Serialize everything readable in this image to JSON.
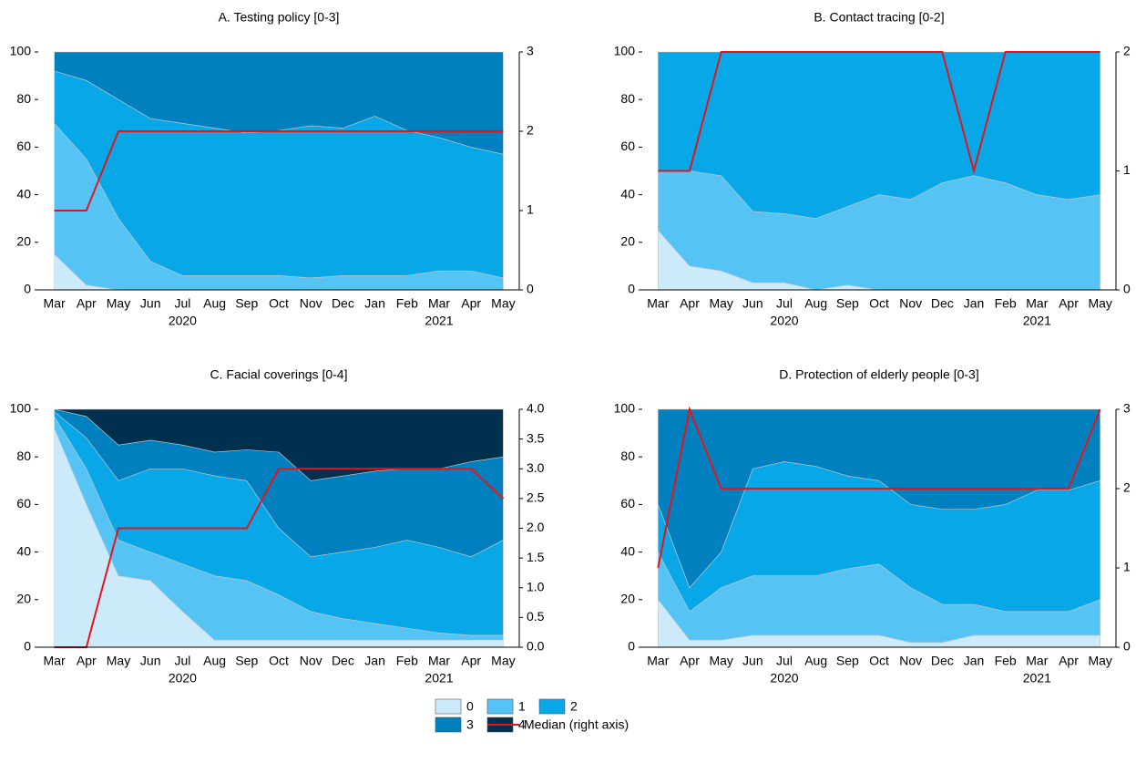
{
  "chart_data": [
    {
      "type": "area",
      "title": "A. Testing policy [0-3]",
      "categories": [
        "Mar",
        "Apr",
        "May",
        "Jun",
        "Jul",
        "Aug",
        "Sep",
        "Oct",
        "Nov",
        "Dec",
        "Jan",
        "Feb",
        "Mar",
        "Apr",
        "May"
      ],
      "years": [
        "2020",
        "2021"
      ],
      "series": [
        {
          "name": "0",
          "color": "#cdeafa",
          "values": [
            15,
            2,
            0,
            0,
            0,
            0,
            0,
            0,
            0,
            0,
            0,
            0,
            0,
            0,
            0
          ]
        },
        {
          "name": "1",
          "color": "#55c4f5",
          "values": [
            55,
            53,
            30,
            12,
            6,
            6,
            6,
            6,
            5,
            6,
            6,
            6,
            8,
            8,
            5
          ]
        },
        {
          "name": "2",
          "color": "#08a8e8",
          "values": [
            22,
            33,
            50,
            60,
            64,
            62,
            60,
            61,
            64,
            62,
            67,
            61,
            56,
            52,
            52
          ]
        },
        {
          "name": "3",
          "color": "#0080bf",
          "values": [
            8,
            12,
            20,
            28,
            30,
            32,
            34,
            33,
            31,
            32,
            27,
            33,
            36,
            40,
            43
          ]
        },
        {
          "name": "Median (right axis)",
          "color": "#e3151b",
          "axis": "y2",
          "values": [
            1,
            1,
            2,
            2,
            2,
            2,
            2,
            2,
            2,
            2,
            2,
            2,
            2,
            2,
            2
          ]
        }
      ],
      "ylim": [
        0,
        100
      ],
      "yticks": [
        0,
        20,
        40,
        60,
        80,
        100
      ],
      "y2lim": [
        0,
        3
      ],
      "y2ticks": [
        0,
        1,
        2,
        3
      ]
    },
    {
      "type": "area",
      "title": "B. Contact tracing [0-2]",
      "categories": [
        "Mar",
        "Apr",
        "May",
        "Jun",
        "Jul",
        "Aug",
        "Sep",
        "Oct",
        "Nov",
        "Dec",
        "Jan",
        "Feb",
        "Mar",
        "Apr",
        "May"
      ],
      "years": [
        "2020",
        "2021"
      ],
      "series": [
        {
          "name": "0",
          "color": "#cdeafa",
          "values": [
            25,
            10,
            8,
            3,
            3,
            0,
            2,
            0,
            0,
            0,
            0,
            0,
            0,
            0,
            0
          ]
        },
        {
          "name": "1",
          "color": "#55c4f5",
          "values": [
            25,
            40,
            40,
            30,
            29,
            30,
            33,
            40,
            38,
            45,
            48,
            45,
            40,
            38,
            40
          ]
        },
        {
          "name": "2",
          "color": "#08a8e8",
          "values": [
            50,
            50,
            52,
            67,
            68,
            70,
            65,
            60,
            62,
            55,
            52,
            55,
            60,
            62,
            60
          ]
        },
        {
          "name": "Median (right axis)",
          "color": "#e3151b",
          "axis": "y2",
          "values": [
            1,
            1,
            2,
            2,
            2,
            2,
            2,
            2,
            2,
            2,
            1,
            2,
            2,
            2,
            2
          ]
        }
      ],
      "ylim": [
        0,
        100
      ],
      "yticks": [
        0,
        20,
        40,
        60,
        80,
        100
      ],
      "y2lim": [
        0,
        2
      ],
      "y2ticks": [
        0,
        1,
        2
      ]
    },
    {
      "type": "area",
      "title": "C. Facial coverings [0-4]",
      "categories": [
        "Mar",
        "Apr",
        "May",
        "Jun",
        "Jul",
        "Aug",
        "Sep",
        "Oct",
        "Nov",
        "Dec",
        "Jan",
        "Feb",
        "Mar",
        "Apr",
        "May"
      ],
      "years": [
        "2020",
        "2021"
      ],
      "series": [
        {
          "name": "0",
          "color": "#cdeafa",
          "values": [
            92,
            60,
            30,
            28,
            15,
            3,
            3,
            3,
            3,
            3,
            3,
            3,
            3,
            3,
            3
          ]
        },
        {
          "name": "1",
          "color": "#55c4f5",
          "values": [
            5,
            15,
            15,
            12,
            20,
            27,
            25,
            19,
            12,
            9,
            7,
            5,
            3,
            2,
            2
          ]
        },
        {
          "name": "2",
          "color": "#08a8e8",
          "values": [
            2,
            13,
            25,
            35,
            40,
            42,
            42,
            28,
            23,
            28,
            32,
            37,
            36,
            33,
            40
          ]
        },
        {
          "name": "3",
          "color": "#0080bf",
          "values": [
            1,
            9,
            15,
            12,
            10,
            10,
            13,
            32,
            32,
            32,
            32,
            30,
            33,
            40,
            35
          ]
        },
        {
          "name": "4",
          "color": "#00304d",
          "values": [
            0,
            3,
            15,
            13,
            15,
            18,
            17,
            18,
            30,
            28,
            26,
            25,
            25,
            22,
            20
          ]
        },
        {
          "name": "Median (right axis)",
          "color": "#e3151b",
          "axis": "y2",
          "values": [
            0,
            0,
            2,
            2,
            2,
            2,
            2,
            3,
            3,
            3,
            3,
            3,
            3,
            3,
            2.5
          ]
        }
      ],
      "ylim": [
        0,
        100
      ],
      "yticks": [
        0,
        20,
        40,
        60,
        80,
        100
      ],
      "y2lim": [
        0,
        4
      ],
      "y2ticks": [
        {
          "value": 0,
          "label": "0.0"
        },
        {
          "value": 0.5,
          "label": "0.5"
        },
        {
          "value": 1,
          "label": "1.0"
        },
        {
          "value": 1.5,
          "label": "1.5"
        },
        {
          "value": 2,
          "label": "2.0"
        },
        {
          "value": 2.5,
          "label": "2.5"
        },
        {
          "value": 3,
          "label": "3.0"
        },
        {
          "value": 3.5,
          "label": "3.5"
        },
        {
          "value": 4,
          "label": "4.0"
        }
      ]
    },
    {
      "type": "area",
      "title": "D. Protection of elderly people [0-3]",
      "categories": [
        "Mar",
        "Apr",
        "May",
        "Jun",
        "Jul",
        "Aug",
        "Sep",
        "Oct",
        "Nov",
        "Dec",
        "Jan",
        "Feb",
        "Mar",
        "Apr",
        "May"
      ],
      "years": [
        "2020",
        "2021"
      ],
      "series": [
        {
          "name": "0",
          "color": "#cdeafa",
          "values": [
            20,
            3,
            3,
            5,
            5,
            5,
            5,
            5,
            2,
            2,
            5,
            5,
            5,
            5,
            5
          ]
        },
        {
          "name": "1",
          "color": "#55c4f5",
          "values": [
            20,
            12,
            22,
            25,
            25,
            25,
            28,
            30,
            23,
            16,
            13,
            10,
            10,
            10,
            15
          ]
        },
        {
          "name": "2",
          "color": "#08a8e8",
          "values": [
            20,
            10,
            15,
            45,
            48,
            46,
            39,
            35,
            35,
            40,
            40,
            45,
            51,
            51,
            50
          ]
        },
        {
          "name": "3",
          "color": "#0080bf",
          "values": [
            40,
            75,
            60,
            25,
            22,
            24,
            28,
            30,
            40,
            42,
            42,
            40,
            34,
            34,
            30
          ]
        },
        {
          "name": "Median (right axis)",
          "color": "#e3151b",
          "axis": "y2",
          "values": [
            1,
            3,
            2,
            2,
            2,
            2,
            2,
            2,
            2,
            2,
            2,
            2,
            2,
            2,
            3
          ]
        }
      ],
      "ylim": [
        0,
        100
      ],
      "yticks": [
        0,
        20,
        40,
        60,
        80,
        100
      ],
      "y2lim": [
        0,
        3
      ],
      "y2ticks": [
        0,
        1,
        2,
        3
      ]
    }
  ]
}
